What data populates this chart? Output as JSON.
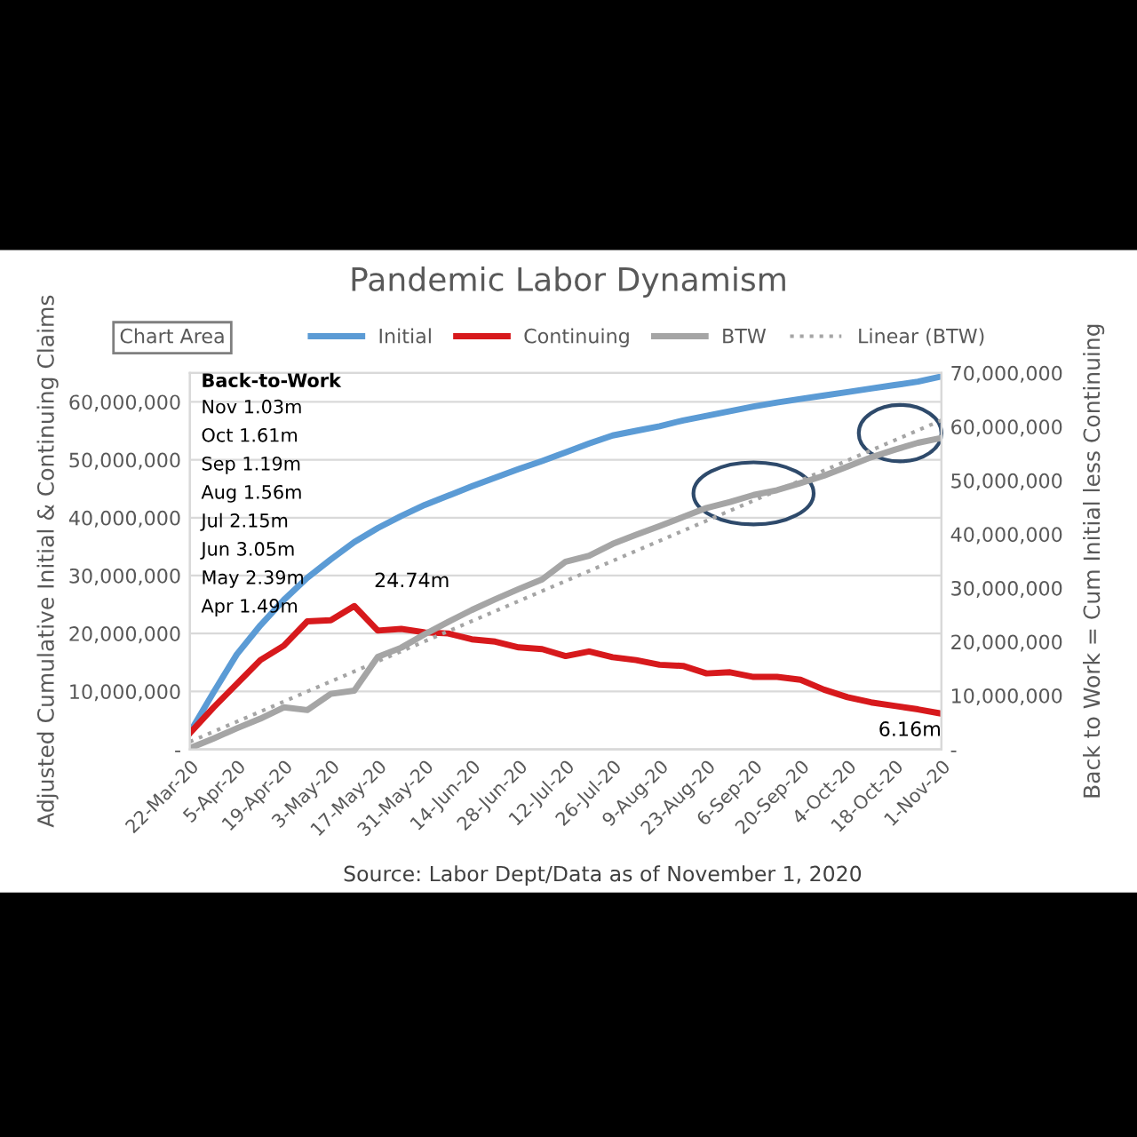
{
  "chart_data": {
    "type": "line",
    "title": "Pandemic Labor Dynamism",
    "xlabel": null,
    "ylabel": "Adjusted Cumulative Initial & Continuing Claims",
    "y2label": "Back to Work = Cum Initial less Continuing",
    "x": [
      "2020-03-22",
      "2020-03-29",
      "2020-04-05",
      "2020-04-12",
      "2020-04-19",
      "2020-04-26",
      "2020-05-03",
      "2020-05-10",
      "2020-05-17",
      "2020-05-24",
      "2020-05-31",
      "2020-06-07",
      "2020-06-14",
      "2020-06-21",
      "2020-06-28",
      "2020-07-05",
      "2020-07-12",
      "2020-07-19",
      "2020-07-26",
      "2020-08-02",
      "2020-08-09",
      "2020-08-16",
      "2020-08-23",
      "2020-08-30",
      "2020-09-06",
      "2020-09-13",
      "2020-09-20",
      "2020-09-27",
      "2020-10-04",
      "2020-10-11",
      "2020-10-18",
      "2020-10-25",
      "2020-11-01"
    ],
    "series": [
      {
        "name": "Initial",
        "color": "#5b9bd5",
        "values": [
          2900000,
          9800000,
          16400000,
          21400000,
          25800000,
          29600000,
          32800000,
          35800000,
          38200000,
          40300000,
          42200000,
          43800000,
          45400000,
          46900000,
          48400000,
          49800000,
          51300000,
          52800000,
          54200000,
          55000000,
          55800000,
          56800000,
          57600000,
          58400000,
          59200000,
          59900000,
          60500000,
          61100000,
          61700000,
          62300000,
          62900000,
          63500000,
          64400000
        ]
      },
      {
        "name": "Continuing",
        "color": "#d7191c",
        "values": [
          2800000,
          7200000,
          11300000,
          15400000,
          17900000,
          22100000,
          22300000,
          24740000,
          20500000,
          20800000,
          20200000,
          20000000,
          19000000,
          18600000,
          17600000,
          17300000,
          16100000,
          16900000,
          15900000,
          15400000,
          14600000,
          14400000,
          13100000,
          13300000,
          12500000,
          12500000,
          12000000,
          10300000,
          9000000,
          8100000,
          7500000,
          6900000,
          6160000
        ]
      },
      {
        "name": "BTW",
        "color": "#a5a5a5",
        "axis": "y2",
        "values": [
          200000,
          2000000,
          3900000,
          5700000,
          7800000,
          7300000,
          10300000,
          10900000,
          17200000,
          18900000,
          21400000,
          23700000,
          25900000,
          27900000,
          29800000,
          31600000,
          34900000,
          36000000,
          38200000,
          39900000,
          41500000,
          43200000,
          44900000,
          46000000,
          47300000,
          48200000,
          49500000,
          50900000,
          52600000,
          54300000,
          55700000,
          57000000,
          57900000
        ]
      },
      {
        "name": "Linear (BTW)",
        "color": "#a5a5a5",
        "axis": "y2",
        "line_style": "dotted",
        "x": [
          "2020-03-22",
          "2020-11-01"
        ],
        "values": [
          1400000,
          61200000
        ]
      }
    ],
    "xlim": [
      "2020-03-22",
      "2020-11-01"
    ],
    "xticks": [
      {
        "value": "2020-03-22",
        "label": "22-Mar-20"
      },
      {
        "value": "2020-04-05",
        "label": "5-Apr-20"
      },
      {
        "value": "2020-04-19",
        "label": "19-Apr-20"
      },
      {
        "value": "2020-05-03",
        "label": "3-May-20"
      },
      {
        "value": "2020-05-17",
        "label": "17-May-20"
      },
      {
        "value": "2020-05-31",
        "label": "31-May-20"
      },
      {
        "value": "2020-06-14",
        "label": "14-Jun-20"
      },
      {
        "value": "2020-06-28",
        "label": "28-Jun-20"
      },
      {
        "value": "2020-07-12",
        "label": "12-Jul-20"
      },
      {
        "value": "2020-07-26",
        "label": "26-Jul-20"
      },
      {
        "value": "2020-08-09",
        "label": "9-Aug-20"
      },
      {
        "value": "2020-08-23",
        "label": "23-Aug-20"
      },
      {
        "value": "2020-09-06",
        "label": "6-Sep-20"
      },
      {
        "value": "2020-09-20",
        "label": "20-Sep-20"
      },
      {
        "value": "2020-10-04",
        "label": "4-Oct-20"
      },
      {
        "value": "2020-10-18",
        "label": "18-Oct-20"
      },
      {
        "value": "2020-11-01",
        "label": "1-Nov-20"
      }
    ],
    "ylim": [
      0,
      65000000
    ],
    "yticks": [
      {
        "value": 0,
        "label": "-"
      },
      {
        "value": 10000000,
        "label": "10,000,000"
      },
      {
        "value": 20000000,
        "label": "20,000,000"
      },
      {
        "value": 30000000,
        "label": "30,000,000"
      },
      {
        "value": 40000000,
        "label": "40,000,000"
      },
      {
        "value": 50000000,
        "label": "50,000,000"
      },
      {
        "value": 60000000,
        "label": "60,000,000"
      }
    ],
    "y2lim": [
      0,
      70000000
    ],
    "y2ticks": [
      {
        "value": 0,
        "label": "-"
      },
      {
        "value": 10000000,
        "label": "10,000,000"
      },
      {
        "value": 20000000,
        "label": "20,000,000"
      },
      {
        "value": 30000000,
        "label": "30,000,000"
      },
      {
        "value": 40000000,
        "label": "40,000,000"
      },
      {
        "value": 50000000,
        "label": "50,000,000"
      },
      {
        "value": 60000000,
        "label": "60,000,000"
      },
      {
        "value": 70000000,
        "label": "70,000,000"
      }
    ],
    "grid": "y",
    "legend": "top",
    "marker": "none",
    "line_style": "solid",
    "annotations": [
      "Back-to-Work\nNov 1.03m\nOct 1.61m\nSep 1.19m\nAug 1.56m\nJul 2.15m\nJun 3.05m\nMay 2.39m\nApr 1.49m",
      {
        "text": "24.74m",
        "x": "2020-05-10",
        "y": 24740000
      },
      {
        "text": "6.16m",
        "x": "2020-11-01",
        "y": 6160000
      },
      "Chart Area",
      "Source: Labor Dept/Data as of November 1, 2020"
    ]
  }
}
